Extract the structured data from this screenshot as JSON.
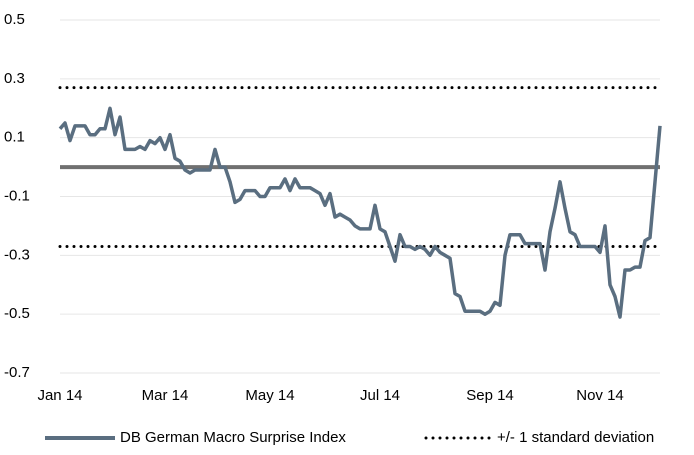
{
  "chart_data": {
    "type": "line",
    "categories": [
      "Jan 14",
      null,
      null,
      null,
      null,
      null,
      null,
      null,
      null,
      null,
      null,
      null,
      null,
      null,
      null,
      null,
      null,
      null,
      null,
      null,
      null,
      "Mar 14",
      null,
      null,
      null,
      null,
      null,
      null,
      null,
      null,
      null,
      null,
      null,
      null,
      null,
      null,
      null,
      null,
      null,
      null,
      null,
      null,
      "May 14",
      null,
      null,
      null,
      null,
      null,
      null,
      null,
      null,
      null,
      null,
      null,
      null,
      null,
      null,
      null,
      null,
      null,
      null,
      null,
      null,
      null,
      "Jul 14",
      null,
      null,
      null,
      null,
      null,
      null,
      null,
      null,
      null,
      null,
      null,
      null,
      null,
      null,
      null,
      null,
      null,
      null,
      null,
      null,
      null,
      "Sep 14",
      null,
      null,
      null,
      null,
      null,
      null,
      null,
      null,
      null,
      null,
      null,
      null,
      null,
      null,
      null,
      null,
      null,
      null,
      null,
      null,
      null,
      "Nov 14",
      null,
      null,
      null,
      null,
      null,
      null,
      null,
      null,
      null,
      null,
      null,
      null
    ],
    "series": [
      {
        "name": "DB German Macro Surprise Index",
        "color": "#5a6e80",
        "values": [
          0.13,
          0.15,
          0.09,
          0.14,
          0.14,
          0.14,
          0.11,
          0.11,
          0.13,
          0.13,
          0.2,
          0.11,
          0.17,
          0.06,
          0.06,
          0.06,
          0.07,
          0.06,
          0.09,
          0.08,
          0.1,
          0.06,
          0.11,
          0.03,
          0.02,
          -0.01,
          -0.02,
          -0.01,
          -0.01,
          -0.01,
          -0.01,
          0.06,
          0,
          0,
          -0.05,
          -0.12,
          -0.11,
          -0.08,
          -0.08,
          -0.08,
          -0.1,
          -0.1,
          -0.07,
          -0.07,
          -0.07,
          -0.04,
          -0.08,
          -0.04,
          -0.07,
          -0.07,
          -0.07,
          -0.08,
          -0.09,
          -0.13,
          -0.09,
          -0.17,
          -0.16,
          -0.17,
          -0.18,
          -0.2,
          -0.21,
          -0.21,
          -0.21,
          -0.13,
          -0.21,
          -0.22,
          -0.27,
          -0.32,
          -0.23,
          -0.27,
          -0.27,
          -0.28,
          -0.27,
          -0.28,
          -0.3,
          -0.27,
          -0.29,
          -0.3,
          -0.31,
          -0.43,
          -0.44,
          -0.49,
          -0.49,
          -0.49,
          -0.49,
          -0.5,
          -0.49,
          -0.46,
          -0.47,
          -0.3,
          -0.23,
          -0.23,
          -0.23,
          -0.26,
          -0.26,
          -0.26,
          -0.26,
          -0.35,
          -0.22,
          -0.14,
          -0.05,
          -0.14,
          -0.22,
          -0.23,
          -0.27,
          -0.27,
          -0.27,
          -0.27,
          -0.29,
          -0.2,
          -0.4,
          -0.44,
          -0.51,
          -0.35,
          -0.35,
          -0.34,
          -0.34,
          -0.25,
          -0.24,
          -0.05,
          0.14
        ]
      }
    ],
    "std_lines": {
      "name": "+/- 1 standard deviation",
      "color": "#000000",
      "values": [
        0.27,
        -0.27
      ]
    },
    "zero_line": {
      "color": "#707070"
    },
    "ylim": [
      -0.7,
      0.5
    ],
    "yticks": [
      0.5,
      0.3,
      0.1,
      -0.1,
      -0.3,
      -0.5,
      -0.7
    ],
    "grid": true
  }
}
